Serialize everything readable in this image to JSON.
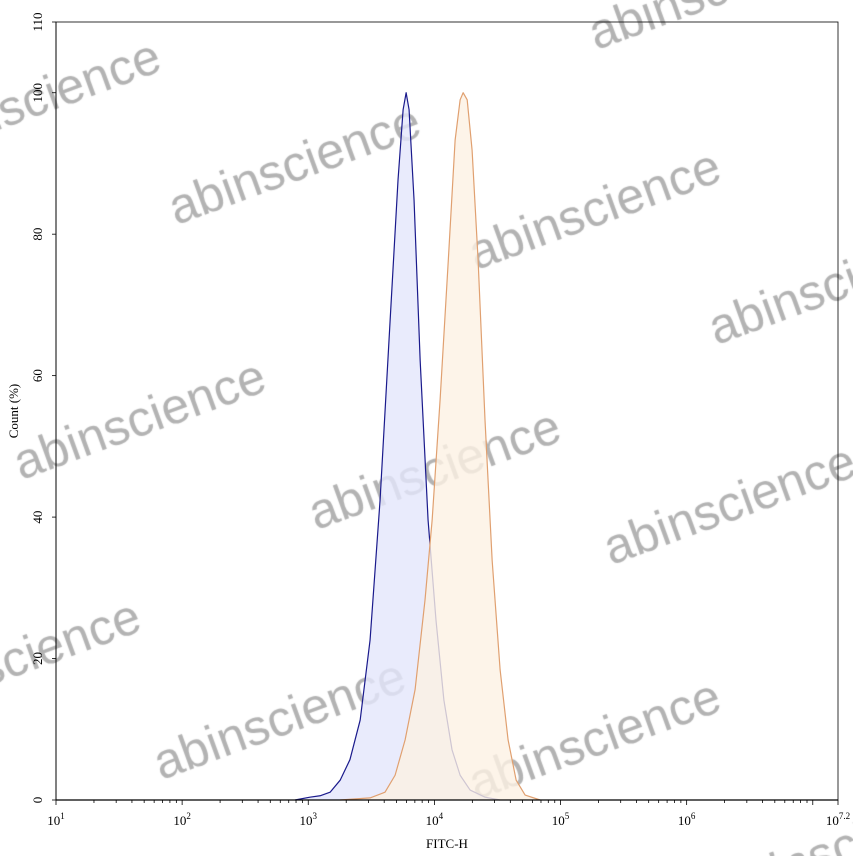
{
  "chart_data": {
    "type": "area",
    "title": "",
    "xlabel": "FITC-H",
    "ylabel": "Count  (%)",
    "x_scale": "log",
    "xlim": [
      10,
      15848932
    ],
    "ylim": [
      0,
      110
    ],
    "x_ticks": [
      {
        "base": "10",
        "exp": "1"
      },
      {
        "base": "10",
        "exp": "2"
      },
      {
        "base": "10",
        "exp": "3"
      },
      {
        "base": "10",
        "exp": "4"
      },
      {
        "base": "10",
        "exp": "5"
      },
      {
        "base": "10",
        "exp": "6"
      },
      {
        "base": "10",
        "exp": "7.2"
      }
    ],
    "y_ticks": [
      "0",
      "20",
      "40",
      "60",
      "80",
      "100",
      "110"
    ],
    "grid": false,
    "series": [
      {
        "color": "#1a1a8c",
        "fill": "#e4e6fb",
        "points": [
          [
            785,
            0
          ],
          [
            1030,
            0.4
          ],
          [
            1240,
            0.6
          ],
          [
            1490,
            1.1
          ],
          [
            1790,
            2.8
          ],
          [
            2140,
            5.7
          ],
          [
            2580,
            11.3
          ],
          [
            3090,
            22.6
          ],
          [
            3710,
            42.4
          ],
          [
            4460,
            67.9
          ],
          [
            5150,
            87.7
          ],
          [
            5650,
            97.6
          ],
          [
            5970,
            100
          ],
          [
            6300,
            97.6
          ],
          [
            6900,
            84.8
          ],
          [
            7710,
            62.2
          ],
          [
            8910,
            39.6
          ],
          [
            10300,
            25.4
          ],
          [
            11900,
            14.1
          ],
          [
            13800,
            7.1
          ],
          [
            16000,
            3.5
          ],
          [
            19200,
            1.4
          ],
          [
            25200,
            0.4
          ],
          [
            33200,
            0
          ]
        ]
      },
      {
        "color": "#e0a070",
        "fill": "#fdf1e4",
        "points": [
          [
            1790,
            0
          ],
          [
            3090,
            0.3
          ],
          [
            4060,
            1.1
          ],
          [
            4880,
            3.5
          ],
          [
            5860,
            8.5
          ],
          [
            7030,
            15.6
          ],
          [
            8430,
            28.3
          ],
          [
            9600,
            39.6
          ],
          [
            11100,
            56.6
          ],
          [
            12900,
            76.4
          ],
          [
            14600,
            93.3
          ],
          [
            16000,
            99.0
          ],
          [
            16900,
            100
          ],
          [
            18200,
            99.0
          ],
          [
            19900,
            91.9
          ],
          [
            22200,
            76.4
          ],
          [
            25200,
            53.7
          ],
          [
            28700,
            33.9
          ],
          [
            33200,
            18.4
          ],
          [
            38400,
            8.5
          ],
          [
            44500,
            2.8
          ],
          [
            52400,
            0.7
          ],
          [
            68900,
            0
          ]
        ]
      }
    ]
  },
  "watermark": "abinscience"
}
